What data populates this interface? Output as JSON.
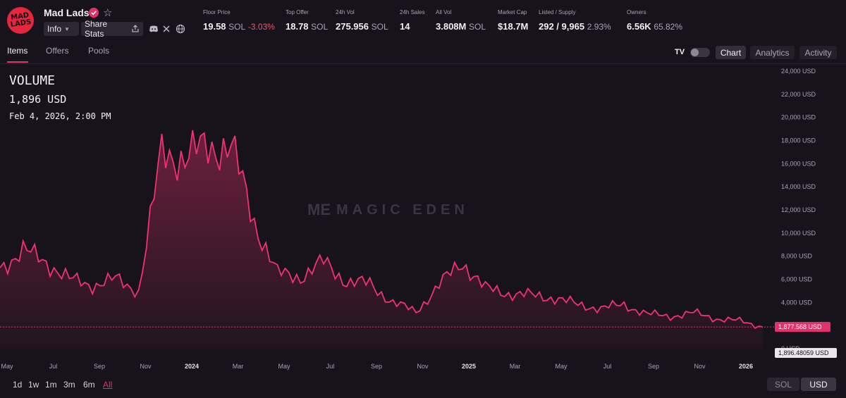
{
  "collection": {
    "logo_text": "MAD LADS",
    "name": "Mad Lads",
    "info_label": "Info",
    "share_label": "Share Stats"
  },
  "stats": [
    {
      "label": "Floor Price",
      "value": "19.58",
      "unit": "SOL",
      "change": "-3.03%"
    },
    {
      "label": "Top Offer",
      "value": "18.78",
      "unit": "SOL"
    },
    {
      "label": "24h Vol",
      "value": "275.956",
      "unit": "SOL"
    },
    {
      "label": "24h Sales",
      "value": "14"
    },
    {
      "label": "All Vol",
      "value": "3.808M",
      "unit": "SOL"
    },
    {
      "label": "Market Cap",
      "value": "$18.7M"
    },
    {
      "label": "Listed / Supply",
      "value": "292 / 9,965",
      "sub": "2.93%"
    },
    {
      "label": "Owners",
      "value": "6.56K",
      "sub": "65.82%"
    }
  ],
  "tabs": [
    "Items",
    "Offers",
    "Pools"
  ],
  "view_buttons": [
    "Chart",
    "Analytics",
    "Activity"
  ],
  "tv_logo": "TV",
  "legend": {
    "title": "VOLUME",
    "value": "1,896 USD",
    "date": "Feb 4, 2026, 2:00 PM"
  },
  "watermark": {
    "mark": "ME",
    "text": "MAGIC EDEN"
  },
  "price_tags": {
    "last": "1,877.568 USD",
    "hover": "1,896.48059 USD"
  },
  "ranges": [
    "1d",
    "1w",
    "1m",
    "3m",
    "6m",
    "All"
  ],
  "units": [
    "SOL",
    "USD"
  ],
  "colors": {
    "accent": "#e5316b",
    "background": "#16131c",
    "negative": "#f0556a"
  },
  "chart_data": {
    "type": "area",
    "y_unit": "USD",
    "ylim": [
      0,
      24000
    ],
    "y_ticks": [
      "24,000 USD",
      "22,000 USD",
      "20,000 USD",
      "18,000 USD",
      "16,000 USD",
      "14,000 USD",
      "12,000 USD",
      "10,000 USD",
      "8,000 USD",
      "6,000 USD",
      "4,000 USD",
      "2,000 USD",
      "0 USD"
    ],
    "x_ticks": [
      "May",
      "Jul",
      "Sep",
      "Nov",
      "2024",
      "Mar",
      "May",
      "Jul",
      "Sep",
      "Nov",
      "2025",
      "Mar",
      "May",
      "Jul",
      "Sep",
      "Nov",
      "2026"
    ],
    "x": [
      "2023-05",
      "2023-06",
      "2023-07",
      "2023-08",
      "2023-09",
      "2023-10",
      "2023-11",
      "2023-12",
      "2024-01",
      "2024-02",
      "2024-03",
      "2024-04",
      "2024-05",
      "2024-06",
      "2024-07",
      "2024-08",
      "2024-09",
      "2024-10",
      "2024-11",
      "2024-12",
      "2025-01",
      "2025-02",
      "2025-03",
      "2025-04",
      "2025-05",
      "2025-06",
      "2025-07",
      "2025-08",
      "2025-09",
      "2025-10",
      "2025-11",
      "2025-12",
      "2026-01",
      "2026-02"
    ],
    "series": [
      {
        "values": [
          7000,
          8500,
          7500,
          6000,
          5500,
          6000,
          5000,
          17000,
          16500,
          17500,
          17500,
          11000,
          6500,
          6200,
          7500,
          5800,
          5600,
          4000,
          3200,
          5500,
          7500,
          5200,
          4800,
          4600,
          4400,
          3800,
          3500,
          3800,
          3000,
          2800,
          3100,
          2600,
          2400,
          1878
        ]
      }
    ]
  }
}
